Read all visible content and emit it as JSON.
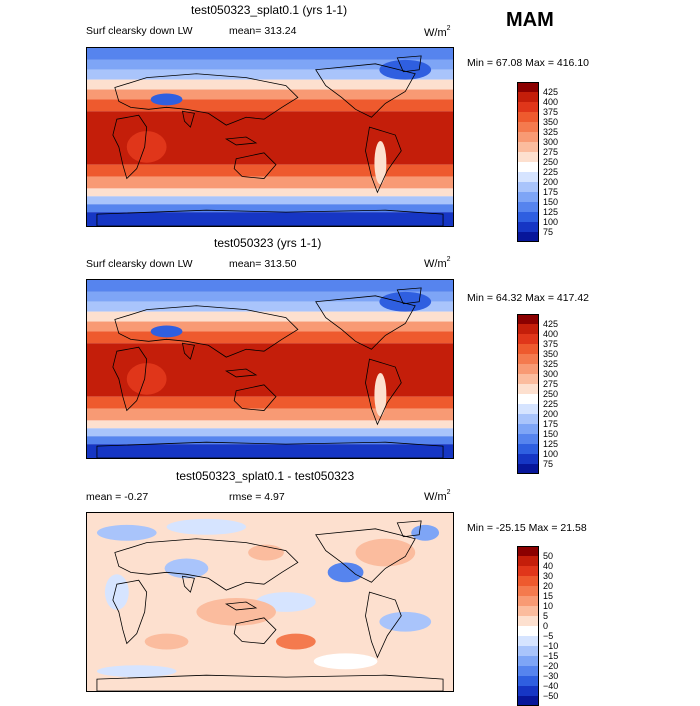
{
  "season": "MAM",
  "panels": [
    {
      "title": "test050323_splat0.1 (yrs 1-1)",
      "field_label": "Surf clearsky down LW",
      "stat1": "mean= 313.24",
      "stat2": "",
      "units": "W/m",
      "units_exp": "2",
      "minmax": "Min =  67.08 Max = 416.10",
      "kind": "field",
      "colorbar": {
        "labels": [
          "425",
          "400",
          "375",
          "350",
          "325",
          "300",
          "275",
          "250",
          "225",
          "200",
          "175",
          "150",
          "125",
          "100",
          "75"
        ],
        "colors": [
          "#8b0000",
          "#c41e0a",
          "#e0361a",
          "#ee5a2e",
          "#f47a4e",
          "#f89a74",
          "#fbbc9e",
          "#fde0cf",
          "#ffffff",
          "#d6e4ff",
          "#a9c4fb",
          "#7ea5f6",
          "#5684ee",
          "#2f5fe0",
          "#1636c4",
          "#07169a"
        ]
      }
    },
    {
      "title": "test050323 (yrs 1-1)",
      "field_label": "Surf clearsky down LW",
      "stat1": "mean= 313.50",
      "stat2": "",
      "units": "W/m",
      "units_exp": "2",
      "minmax": "Min =  64.32 Max = 417.42",
      "kind": "field",
      "colorbar": {
        "labels": [
          "425",
          "400",
          "375",
          "350",
          "325",
          "300",
          "275",
          "250",
          "225",
          "200",
          "175",
          "150",
          "125",
          "100",
          "75"
        ],
        "colors": [
          "#8b0000",
          "#c41e0a",
          "#e0361a",
          "#ee5a2e",
          "#f47a4e",
          "#f89a74",
          "#fbbc9e",
          "#fde0cf",
          "#ffffff",
          "#d6e4ff",
          "#a9c4fb",
          "#7ea5f6",
          "#5684ee",
          "#2f5fe0",
          "#1636c4",
          "#07169a"
        ]
      }
    },
    {
      "title": "test050323_splat0.1 - test050323",
      "field_label": "mean =  -0.27",
      "stat1": "rmse =   4.97",
      "stat2": "",
      "units": "W/m",
      "units_exp": "2",
      "minmax": "Min = -25.15 Max =  21.58",
      "kind": "diff",
      "colorbar": {
        "labels": [
          "50",
          "40",
          "30",
          "20",
          "15",
          "10",
          "5",
          "0",
          "−5",
          "−10",
          "−15",
          "−20",
          "−30",
          "−40",
          "−50"
        ],
        "colors": [
          "#8b0000",
          "#c41e0a",
          "#e0361a",
          "#ee5a2e",
          "#f47a4e",
          "#f89a74",
          "#fbbc9e",
          "#fde0cf",
          "#ffffff",
          "#d6e4ff",
          "#a9c4fb",
          "#7ea5f6",
          "#5684ee",
          "#2f5fe0",
          "#1636c4",
          "#07169a"
        ]
      }
    }
  ]
}
